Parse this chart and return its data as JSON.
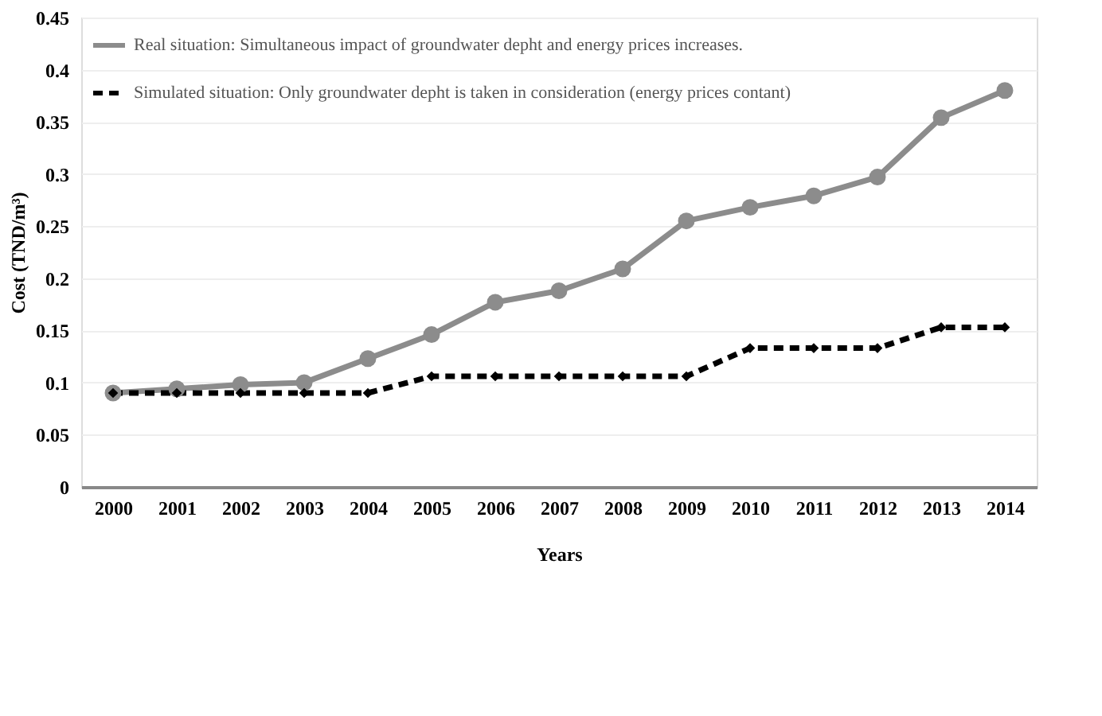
{
  "chart_data": {
    "type": "line",
    "xlabel": "Years",
    "ylabel": "Cost (TND/m³)",
    "categories": [
      "2000",
      "2001",
      "2002",
      "2003",
      "2004",
      "2005",
      "2006",
      "2007",
      "2008",
      "2009",
      "2010",
      "2011",
      "2012",
      "2013",
      "2014"
    ],
    "series": [
      {
        "name": "Real situation: Simultaneous impact of groundwater depht and energy prices increases.",
        "color": "#8c8c8c",
        "marker": "circle",
        "line_style": "solid",
        "values": [
          0.09,
          0.094,
          0.098,
          0.1,
          0.123,
          0.146,
          0.177,
          0.188,
          0.209,
          0.255,
          0.268,
          0.279,
          0.297,
          0.354,
          0.38
        ]
      },
      {
        "name": "Simulated situation: Only groundwater depht is taken in consideration (energy prices contant)",
        "color": "#000000",
        "marker": "diamond",
        "line_style": "dashed",
        "values": [
          0.09,
          0.09,
          0.09,
          0.09,
          0.09,
          0.106,
          0.106,
          0.106,
          0.106,
          0.106,
          0.133,
          0.133,
          0.133,
          0.153,
          0.153
        ]
      }
    ],
    "ylim": [
      0,
      0.45
    ],
    "yticks": [
      0,
      0.05,
      0.1,
      0.15,
      0.2,
      0.25,
      0.3,
      0.35,
      0.4,
      0.45
    ],
    "grid": "y",
    "legend": "top left"
  }
}
